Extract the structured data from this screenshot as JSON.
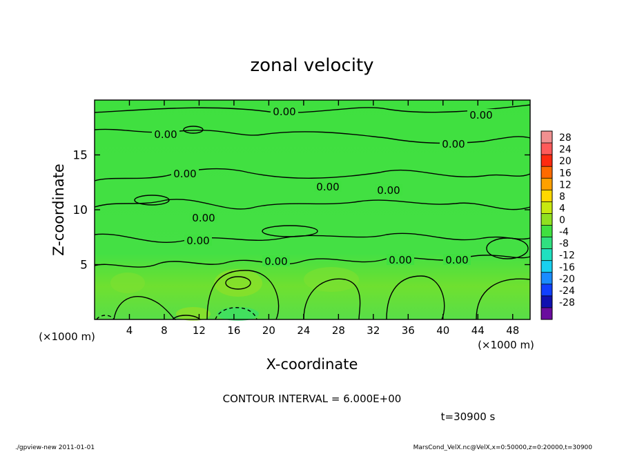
{
  "chart_data": {
    "type": "contour",
    "title": "zonal velocity",
    "x_label": "X-coordinate",
    "y_label": "Z-coordinate",
    "x_unit": "(×1000 m)",
    "y_unit": "(×1000 m)",
    "xlim": [
      0,
      50
    ],
    "xticks": [
      4,
      8,
      12,
      16,
      20,
      24,
      28,
      32,
      36,
      40,
      44,
      48
    ],
    "ylim": [
      0,
      20
    ],
    "yticks": [
      5,
      10,
      15
    ],
    "contour_label": "0.00",
    "contour_interval": "CONTOUR INTERVAL = 6.000E+00",
    "time_label": "t=30900 s",
    "footer_left": "./gpview-new  2011-01-01",
    "footer_right": "MarsCond_VelX.nc@VelX,x=0:50000,z=0:20000,t=30900",
    "clim": [
      -32,
      32
    ],
    "cticks": [
      28,
      24,
      20,
      16,
      12,
      8,
      4,
      0,
      -4,
      -8,
      -12,
      -16,
      -20,
      -24,
      -28
    ],
    "colors": [
      "#6a0d9e",
      "#1010b0",
      "#1040ff",
      "#1a8cff",
      "#19d0f0",
      "#1fe0c0",
      "#30e080",
      "#40e040",
      "#90e020",
      "#c8e810",
      "#ffd800",
      "#ffa000",
      "#ff6a00",
      "#ff2a10",
      "#ff5a5a",
      "#f09090"
    ]
  }
}
